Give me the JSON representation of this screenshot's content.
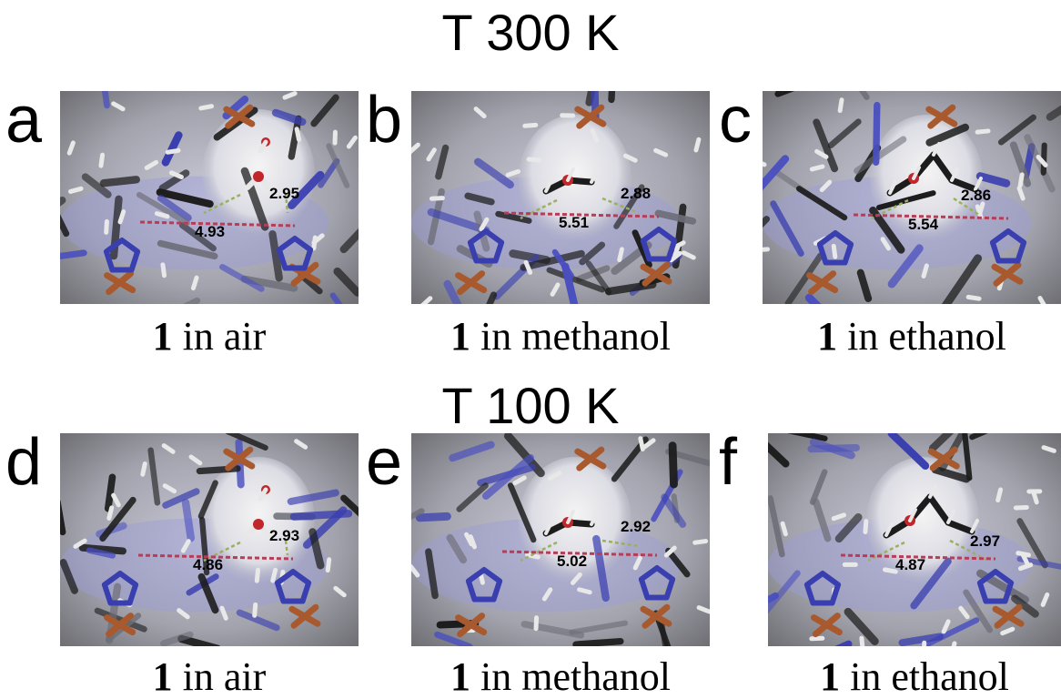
{
  "rows": [
    {
      "temperature": "T 300 K",
      "panels": [
        {
          "letter": "a",
          "compound": "1",
          "condition": "in air",
          "hbond": "2.95",
          "width": "4.93"
        },
        {
          "letter": "b",
          "compound": "1",
          "condition": "in methanol",
          "hbond": "2.88",
          "width": "5.51"
        },
        {
          "letter": "c",
          "compound": "1",
          "condition": "in ethanol",
          "hbond": "2.86",
          "width": "5.54"
        }
      ]
    },
    {
      "temperature": "T 100 K",
      "panels": [
        {
          "letter": "d",
          "compound": "1",
          "condition": "in air",
          "hbond": "2.93",
          "width": "4.86"
        },
        {
          "letter": "e",
          "compound": "1",
          "condition": "in methanol",
          "hbond": "2.92",
          "width": "5.02"
        },
        {
          "letter": "f",
          "compound": "1",
          "condition": "in ethanol",
          "hbond": "2.97",
          "width": "4.87"
        }
      ]
    }
  ],
  "colors": {
    "carbon": "#1c1c1c",
    "nitrogen": "#3a3fb0",
    "iron": "#a85a2e",
    "oxygen": "#c0262a",
    "hydrogen": "#e8e8e8",
    "pore_surface": "#f4f4f4",
    "distance_line": "#b0405a",
    "hbond_line": "#9ab060"
  }
}
